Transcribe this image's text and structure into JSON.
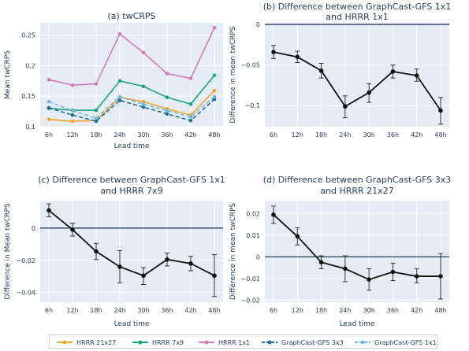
{
  "chart_data": [
    {
      "type": "line",
      "title": "(a) twCRPS",
      "xlabel": "Lead time",
      "ylabel": "Mean twCRPS",
      "categories": [
        "6h",
        "12h",
        "18h",
        "24h",
        "30h",
        "36h",
        "42h",
        "48h"
      ],
      "ylim": [
        0.1,
        0.27
      ],
      "yticks": [
        0.1,
        0.15,
        0.2,
        0.25
      ],
      "ytick_labels": [
        "0.1",
        "0.15",
        "0.2",
        "0.25"
      ],
      "grid": true,
      "series": [
        {
          "name": "HRRR 21x27",
          "color": "#f0a52b",
          "dash": false,
          "values": [
            0.112,
            0.109,
            0.11,
            0.148,
            0.141,
            0.129,
            0.119,
            0.159
          ]
        },
        {
          "name": "HRRR 7x9",
          "color": "#1aa37a",
          "dash": false,
          "values": [
            0.13,
            0.127,
            0.127,
            0.175,
            0.166,
            0.148,
            0.137,
            0.184
          ]
        },
        {
          "name": "HRRR 1x1",
          "color": "#d67bb1",
          "dash": false,
          "values": [
            0.177,
            0.168,
            0.17,
            0.252,
            0.221,
            0.187,
            0.179,
            0.262
          ]
        },
        {
          "name": "GraphCast-GFS 3x3",
          "color": "#1f6d99",
          "dash": true,
          "values": [
            0.131,
            0.119,
            0.109,
            0.143,
            0.132,
            0.121,
            0.11,
            0.145
          ]
        },
        {
          "name": "GraphCast-GFS 1x1",
          "color": "#6fb9e3",
          "dash": true,
          "values": [
            0.141,
            0.126,
            0.114,
            0.149,
            0.137,
            0.126,
            0.116,
            0.149
          ]
        }
      ]
    },
    {
      "type": "line",
      "title": [
        "(b) Difference between GraphCast-GFS 1x1",
        "and HRRR 1x1"
      ],
      "xlabel": "",
      "ylabel": "Difference in mean twCRPS",
      "categories": [
        "6h",
        "12h",
        "18h",
        "24h",
        "30h",
        "36h",
        "42h",
        "48h"
      ],
      "ylim": [
        -0.126,
        0.002
      ],
      "yticks": [
        0,
        -0.05,
        -0.1
      ],
      "ytick_labels": [
        "0",
        "−0.05",
        "−0.1"
      ],
      "zero_line": true,
      "grid": true,
      "series": [
        {
          "name": "",
          "color": "#111111",
          "values": [
            -0.034,
            -0.04,
            -0.057,
            -0.101,
            -0.084,
            -0.058,
            -0.063,
            -0.106
          ],
          "err_low": [
            -0.042,
            -0.047,
            -0.066,
            -0.115,
            -0.096,
            -0.066,
            -0.07,
            -0.123
          ],
          "err_high": [
            -0.026,
            -0.033,
            -0.048,
            -0.088,
            -0.073,
            -0.05,
            -0.055,
            -0.09
          ]
        }
      ]
    },
    {
      "type": "line",
      "title": [
        "(c) Difference between GraphCast-GFS 1x1",
        "and HRRR 7x9"
      ],
      "xlabel": "Lead time",
      "ylabel": "Difference in Mean twCRPS",
      "categories": [
        "6h",
        "12h",
        "18h",
        "24h",
        "30h",
        "36h",
        "42h",
        "48h"
      ],
      "ylim": [
        -0.046,
        0.017
      ],
      "yticks": [
        0,
        -0.02,
        -0.04
      ],
      "ytick_labels": [
        "0",
        "−0.02",
        "−0.04"
      ],
      "zero_line": true,
      "grid": true,
      "series": [
        {
          "name": "",
          "color": "#111111",
          "values": [
            0.011,
            -0.001,
            -0.0145,
            -0.024,
            -0.0295,
            -0.0195,
            -0.022,
            -0.0295
          ],
          "err_low": [
            0.007,
            -0.005,
            -0.0195,
            -0.034,
            -0.035,
            -0.0235,
            -0.0265,
            -0.0425
          ],
          "err_high": [
            0.015,
            0.003,
            -0.0095,
            -0.014,
            -0.0245,
            -0.0155,
            -0.0175,
            -0.0165
          ]
        }
      ]
    },
    {
      "type": "line",
      "title": [
        "(d) Difference between GraphCast-GFS 3x3",
        "and HRRR 21x27"
      ],
      "xlabel": "Lead time",
      "ylabel": "Difference in mean twCRPS",
      "categories": [
        "6h",
        "12h",
        "18h",
        "24h",
        "30h",
        "36h",
        "42h",
        "48h"
      ],
      "ylim": [
        -0.021,
        0.026
      ],
      "yticks": [
        0.02,
        0.01,
        0,
        -0.01,
        -0.02
      ],
      "ytick_labels": [
        "0.02",
        "0.01",
        "0",
        "−0.01",
        "−0.02"
      ],
      "zero_line": true,
      "grid": true,
      "series": [
        {
          "name": "",
          "color": "#111111",
          "values": [
            0.0195,
            0.0095,
            -0.0025,
            -0.0055,
            -0.0105,
            -0.007,
            -0.009,
            -0.009
          ],
          "err_low": [
            0.0155,
            0.0055,
            -0.0055,
            -0.0115,
            -0.0155,
            -0.011,
            -0.012,
            -0.0195
          ],
          "err_high": [
            0.0235,
            0.0135,
            0.0005,
            0.0005,
            -0.0055,
            -0.003,
            -0.0055,
            0.0015
          ]
        }
      ]
    }
  ],
  "legend": [
    {
      "label": "HRRR 21x27",
      "color": "#f0a52b",
      "dash": false
    },
    {
      "label": "HRRR 7x9",
      "color": "#1aa37a",
      "dash": false
    },
    {
      "label": "HRRR 1x1",
      "color": "#d67bb1",
      "dash": false
    },
    {
      "label": "GraphCast-GFS 3x3",
      "color": "#1f6d99",
      "dash": true
    },
    {
      "label": "GraphCast-GFS 1x1",
      "color": "#6fb9e3",
      "dash": true
    }
  ],
  "colors": {
    "plot_bg": "#e5ecf6",
    "grid": "#ffffff",
    "zero_line": "#2a3f5f",
    "text": "#2a3f5f"
  }
}
